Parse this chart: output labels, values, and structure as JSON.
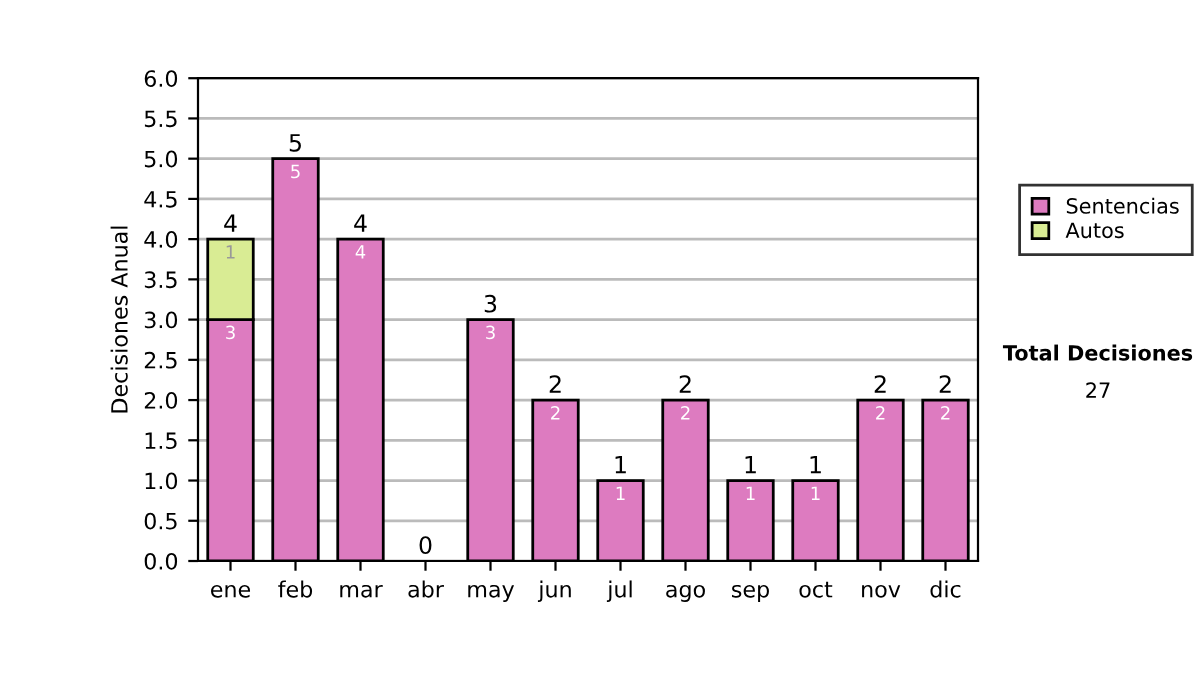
{
  "chart_data": {
    "type": "bar",
    "stacked": true,
    "ylabel": "Decisiones Anual",
    "categories": [
      "ene",
      "feb",
      "mar",
      "abr",
      "may",
      "jun",
      "jul",
      "ago",
      "sep",
      "oct",
      "nov",
      "dic"
    ],
    "series": [
      {
        "name": "Sentencias",
        "color": "#dd7bc0",
        "values": [
          3,
          5,
          4,
          0,
          3,
          2,
          1,
          2,
          1,
          1,
          2,
          2
        ],
        "value_labels": [
          "3",
          "5",
          "4",
          null,
          "3",
          "2",
          "1",
          "2",
          "1",
          "1",
          "2",
          "2"
        ]
      },
      {
        "name": "Autos",
        "color": "#d9ec94",
        "values": [
          1,
          0,
          0,
          0,
          0,
          0,
          0,
          0,
          0,
          0,
          0,
          0
        ],
        "value_labels": [
          "1",
          null,
          null,
          null,
          null,
          null,
          null,
          null,
          null,
          null,
          null,
          null
        ]
      }
    ],
    "totals": [
      "4",
      "5",
      "4",
      "0",
      "3",
      "2",
      "1",
      "2",
      "1",
      "1",
      "2",
      "2"
    ],
    "ylim": [
      0,
      6
    ],
    "yticks": [
      {
        "value": 0,
        "label": "0.0"
      },
      {
        "value": 0.5,
        "label": "0.5"
      },
      {
        "value": 1,
        "label": "1.0"
      },
      {
        "value": 1.5,
        "label": "1.5"
      },
      {
        "value": 2,
        "label": "2.0"
      },
      {
        "value": 2.5,
        "label": "2.5"
      },
      {
        "value": 3,
        "label": "3.0"
      },
      {
        "value": 3.5,
        "label": "3.5"
      },
      {
        "value": 4,
        "label": "4.0"
      },
      {
        "value": 4.5,
        "label": "4.5"
      },
      {
        "value": 5,
        "label": "5.0"
      },
      {
        "value": 5.5,
        "label": "5.5"
      },
      {
        "value": 6,
        "label": "6.0"
      }
    ],
    "grid": "y",
    "legend": "right",
    "annotations": [
      "Total Decisiones",
      "27"
    ]
  }
}
